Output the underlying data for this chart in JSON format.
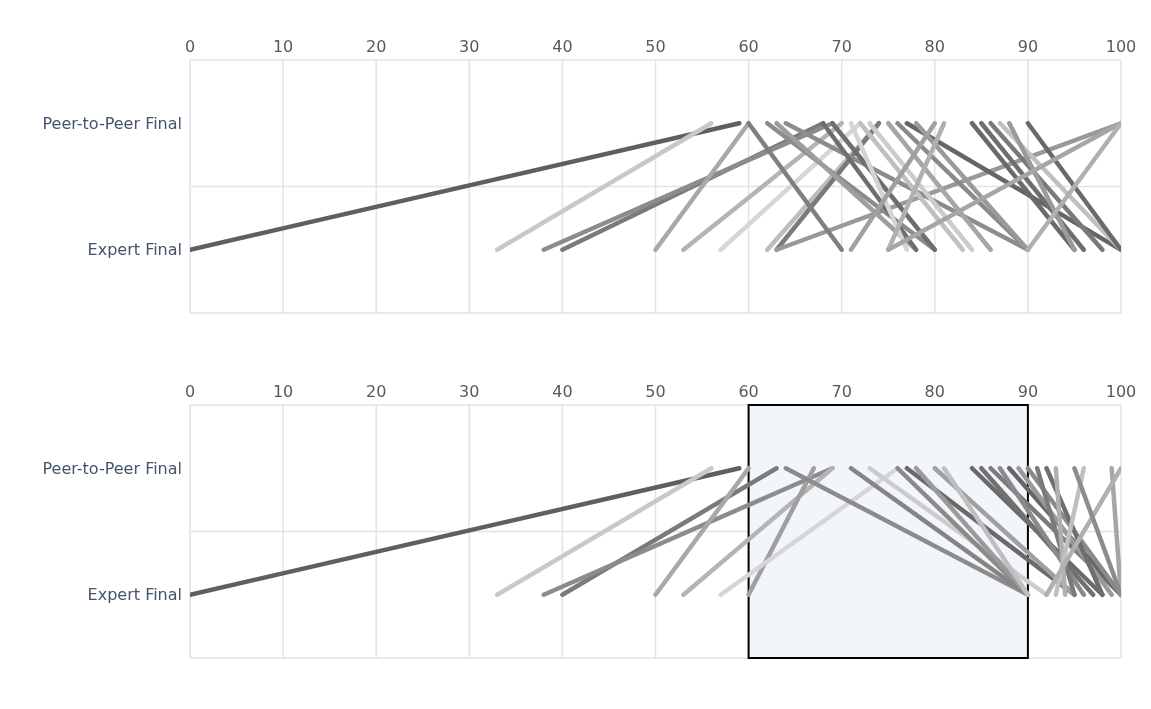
{
  "chart_data": [
    {
      "type": "line",
      "orientation": "horizontal",
      "categories": [
        "Peer-to-Peer Final",
        "Expert Final"
      ],
      "xlim": [
        0,
        100
      ],
      "xticks": [
        0,
        10,
        20,
        30,
        40,
        50,
        60,
        70,
        80,
        90,
        100
      ],
      "grid": true,
      "series": [
        {
          "color": "#5f5f5f",
          "values": [
            59,
            0
          ]
        },
        {
          "color": "#c8c8c8",
          "values": [
            56,
            33
          ]
        },
        {
          "color": "#7a7a7a",
          "values": [
            68,
            40
          ]
        },
        {
          "color": "#8c8c8c",
          "values": [
            69,
            38
          ]
        },
        {
          "color": "#a8a8a8",
          "values": [
            60,
            50
          ]
        },
        {
          "color": "#b4b4b4",
          "values": [
            70,
            53
          ]
        },
        {
          "color": "#d6d6d6",
          "values": [
            72,
            57
          ]
        },
        {
          "color": "#bdbdbd",
          "values": [
            74,
            62
          ]
        },
        {
          "color": "#7a7a7a",
          "values": [
            74,
            63
          ]
        },
        {
          "color": "#999999",
          "values": [
            100,
            63
          ]
        },
        {
          "color": "#7f7f7f",
          "values": [
            60,
            70
          ]
        },
        {
          "color": "#8c8c8c",
          "values": [
            62,
            80
          ]
        },
        {
          "color": "#9e9e9e",
          "values": [
            63,
            78
          ]
        },
        {
          "color": "#8c8c8c",
          "values": [
            64,
            90
          ]
        },
        {
          "color": "#6e6e6e",
          "values": [
            68,
            78
          ]
        },
        {
          "color": "#6e6e6e",
          "values": [
            69,
            80
          ]
        },
        {
          "color": "#d4d4d4",
          "values": [
            71,
            77
          ]
        },
        {
          "color": "#c0c0c0",
          "values": [
            72,
            83
          ]
        },
        {
          "color": "#cccccc",
          "values": [
            73,
            84
          ]
        },
        {
          "color": "#a6a6a6",
          "values": [
            75,
            86
          ]
        },
        {
          "color": "#8a8a8a",
          "values": [
            76,
            90
          ]
        },
        {
          "color": "#666666",
          "values": [
            77,
            100
          ]
        },
        {
          "color": "#9a9a9a",
          "values": [
            78,
            90
          ]
        },
        {
          "color": "#a0a0a0",
          "values": [
            80,
            71
          ]
        },
        {
          "color": "#b0b0b0",
          "values": [
            81,
            75
          ]
        },
        {
          "color": "#6a6a6a",
          "values": [
            84,
            95
          ]
        },
        {
          "color": "#6e6e6e",
          "values": [
            85,
            96
          ]
        },
        {
          "color": "#7a7a7a",
          "values": [
            86,
            98
          ]
        },
        {
          "color": "#c0c0c0",
          "values": [
            87,
            100
          ]
        },
        {
          "color": "#9a9a9a",
          "values": [
            88,
            95
          ]
        },
        {
          "color": "#6a6a6a",
          "values": [
            90,
            100
          ]
        },
        {
          "color": "#a6a6a6",
          "values": [
            100,
            75
          ]
        },
        {
          "color": "#b0b0b0",
          "values": [
            100,
            90
          ]
        }
      ]
    },
    {
      "type": "line",
      "orientation": "horizontal",
      "categories": [
        "Peer-to-Peer Final",
        "Expert Final"
      ],
      "xlim": [
        0,
        100
      ],
      "xticks": [
        0,
        10,
        20,
        30,
        40,
        50,
        60,
        70,
        80,
        90,
        100
      ],
      "grid": true,
      "bands": [
        {
          "axis": "x",
          "from": 60,
          "to": 90,
          "color": "#f2f6fa"
        }
      ],
      "series": [
        {
          "color": "#5f5f5f",
          "values": [
            59,
            0
          ]
        },
        {
          "color": "#c8c8c8",
          "values": [
            56,
            33
          ]
        },
        {
          "color": "#7a7a7a",
          "values": [
            63,
            40
          ]
        },
        {
          "color": "#8c8c8c",
          "values": [
            69,
            38
          ]
        },
        {
          "color": "#a8a8a8",
          "values": [
            60,
            50
          ]
        },
        {
          "color": "#b4b4b4",
          "values": [
            69,
            53
          ]
        },
        {
          "color": "#a0a0a0",
          "values": [
            67,
            60
          ]
        },
        {
          "color": "#d6d6d6",
          "values": [
            76,
            57
          ]
        },
        {
          "color": "#8c8c8c",
          "values": [
            64,
            90
          ]
        },
        {
          "color": "#858585",
          "values": [
            71,
            90
          ]
        },
        {
          "color": "#cccccc",
          "values": [
            73,
            92
          ]
        },
        {
          "color": "#8a8a8a",
          "values": [
            76,
            90
          ]
        },
        {
          "color": "#6a6a6a",
          "values": [
            77,
            95
          ]
        },
        {
          "color": "#9a9a9a",
          "values": [
            78,
            90
          ]
        },
        {
          "color": "#a0a0a0",
          "values": [
            80,
            95
          ]
        },
        {
          "color": "#c0c0c0",
          "values": [
            81,
            90
          ]
        },
        {
          "color": "#6a6a6a",
          "values": [
            84,
            98
          ]
        },
        {
          "color": "#707070",
          "values": [
            85,
            97
          ]
        },
        {
          "color": "#7a7a7a",
          "values": [
            86,
            100
          ]
        },
        {
          "color": "#8a8a8a",
          "values": [
            87,
            96
          ]
        },
        {
          "color": "#666666",
          "values": [
            88,
            100
          ]
        },
        {
          "color": "#9a9a9a",
          "values": [
            89,
            99
          ]
        },
        {
          "color": "#8a8a8a",
          "values": [
            90,
            100
          ]
        },
        {
          "color": "#7a7a7a",
          "values": [
            91,
            95
          ]
        },
        {
          "color": "#6e6e6e",
          "values": [
            92,
            98
          ]
        },
        {
          "color": "#b0b0b0",
          "values": [
            93,
            94
          ]
        },
        {
          "color": "#c0c0c0",
          "values": [
            96,
            93
          ]
        },
        {
          "color": "#a6a6a6",
          "values": [
            99,
            100
          ]
        },
        {
          "color": "#b0b0b0",
          "values": [
            100,
            92
          ]
        },
        {
          "color": "#8c8c8c",
          "values": [
            95,
            100
          ]
        }
      ]
    }
  ]
}
